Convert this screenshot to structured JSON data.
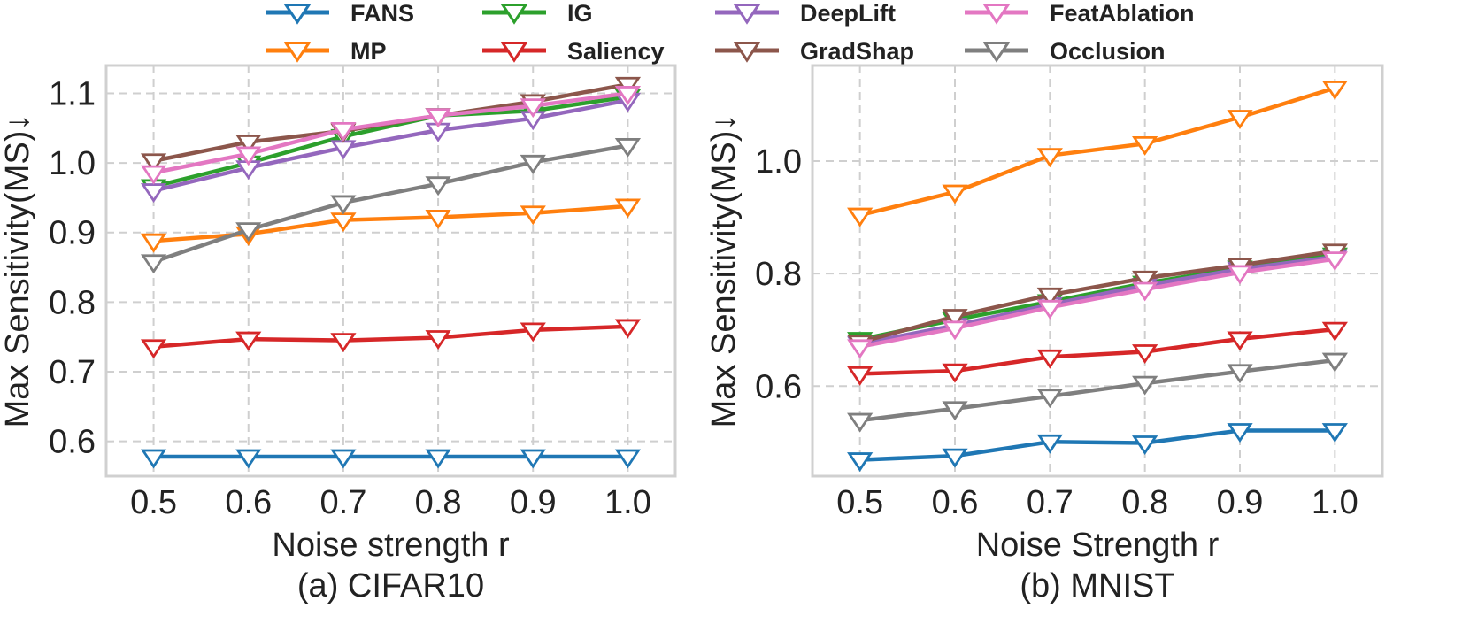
{
  "legend": {
    "entries": [
      {
        "name": "FANS",
        "color": "#1f77b4"
      },
      {
        "name": "MP",
        "color": "#ff7f0e"
      },
      {
        "name": "IG",
        "color": "#2ca02c"
      },
      {
        "name": "Saliency",
        "color": "#d62728"
      },
      {
        "name": "DeepLift",
        "color": "#9467bd"
      },
      {
        "name": "GradShap",
        "color": "#8c564b"
      },
      {
        "name": "FeatAblation",
        "color": "#e377c2"
      },
      {
        "name": "Occlusion",
        "color": "#7f7f7f"
      }
    ]
  },
  "chart_data": [
    {
      "type": "line",
      "title": "(a) CIFAR10",
      "xlabel": "Noise strength r",
      "ylabel": "Max Sensitivity(MS)↓",
      "x": [
        0.5,
        0.6,
        0.7,
        0.8,
        0.9,
        1.0
      ],
      "x_ticks": [
        "0.5",
        "0.6",
        "0.7",
        "0.8",
        "0.9",
        "1.0"
      ],
      "y_ticks": [
        0.6,
        0.7,
        0.8,
        0.9,
        1.0,
        1.1
      ],
      "y_tick_labels": [
        "0.6",
        "0.7",
        "0.8",
        "0.9",
        "1.0",
        "1.1"
      ],
      "xlim": [
        0.45,
        1.05
      ],
      "ylim": [
        0.55,
        1.14
      ],
      "grid": true,
      "marker": "triangle-down-open",
      "series": [
        {
          "name": "FANS",
          "values": [
            0.578,
            0.578,
            0.578,
            0.578,
            0.578,
            0.578
          ]
        },
        {
          "name": "MP",
          "values": [
            0.888,
            0.898,
            0.918,
            0.922,
            0.928,
            0.938
          ]
        },
        {
          "name": "IG",
          "values": [
            0.966,
            1.0,
            1.038,
            1.068,
            1.075,
            1.095
          ]
        },
        {
          "name": "Saliency",
          "values": [
            0.736,
            0.747,
            0.745,
            0.749,
            0.76,
            0.765
          ]
        },
        {
          "name": "DeepLift",
          "values": [
            0.96,
            0.993,
            1.022,
            1.047,
            1.064,
            1.09
          ]
        },
        {
          "name": "GradShap",
          "values": [
            1.003,
            1.03,
            1.046,
            1.068,
            1.088,
            1.113
          ]
        },
        {
          "name": "FeatAblation",
          "values": [
            0.986,
            1.013,
            1.048,
            1.068,
            1.082,
            1.1
          ]
        },
        {
          "name": "Occlusion",
          "values": [
            0.858,
            0.904,
            0.943,
            0.97,
            1.001,
            1.025
          ]
        }
      ]
    },
    {
      "type": "line",
      "title": "(b) MNIST",
      "xlabel": "Noise Strength r",
      "ylabel": "Max Sensitivity(MS)↓",
      "x": [
        0.5,
        0.6,
        0.7,
        0.8,
        0.9,
        1.0
      ],
      "x_ticks": [
        "0.5",
        "0.6",
        "0.7",
        "0.8",
        "0.9",
        "1.0"
      ],
      "y_ticks": [
        0.6,
        0.8,
        1.0
      ],
      "y_tick_labels": [
        "0.6",
        "0.8",
        "1.0"
      ],
      "xlim": [
        0.45,
        1.05
      ],
      "ylim": [
        0.44,
        1.17
      ],
      "grid": true,
      "marker": "triangle-down-open",
      "series": [
        {
          "name": "FANS",
          "values": [
            0.469,
            0.476,
            0.501,
            0.499,
            0.521,
            0.521
          ]
        },
        {
          "name": "MP",
          "values": [
            0.904,
            0.945,
            1.01,
            1.031,
            1.078,
            1.13
          ]
        },
        {
          "name": "IG",
          "values": [
            0.683,
            0.718,
            0.75,
            0.783,
            0.81,
            0.833
          ]
        },
        {
          "name": "Saliency",
          "values": [
            0.622,
            0.627,
            0.652,
            0.661,
            0.684,
            0.701
          ]
        },
        {
          "name": "DeepLift",
          "values": [
            0.675,
            0.708,
            0.745,
            0.779,
            0.808,
            0.83
          ]
        },
        {
          "name": "GradShap",
          "values": [
            0.678,
            0.724,
            0.762,
            0.792,
            0.815,
            0.84
          ]
        },
        {
          "name": "FeatAblation",
          "values": [
            0.67,
            0.703,
            0.74,
            0.772,
            0.802,
            0.826
          ]
        },
        {
          "name": "Occlusion",
          "values": [
            0.539,
            0.56,
            0.582,
            0.605,
            0.626,
            0.646
          ]
        }
      ]
    }
  ]
}
